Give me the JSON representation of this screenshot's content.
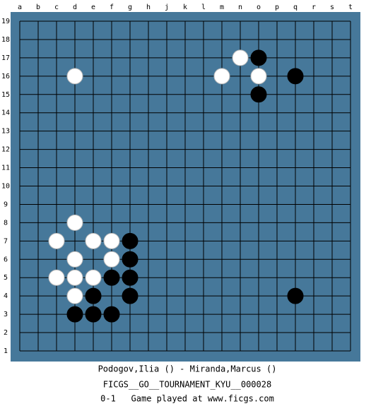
{
  "board": {
    "columns": [
      "a",
      "b",
      "c",
      "d",
      "e",
      "f",
      "g",
      "h",
      "j",
      "k",
      "l",
      "m",
      "n",
      "o",
      "p",
      "q",
      "r",
      "s",
      "t"
    ],
    "rows": [
      19,
      18,
      17,
      16,
      15,
      14,
      13,
      12,
      11,
      10,
      9,
      8,
      7,
      6,
      5,
      4,
      3,
      2,
      1
    ],
    "stones": [
      {
        "color": "white",
        "col": "n",
        "row": 17
      },
      {
        "color": "black",
        "col": "o",
        "row": 17
      },
      {
        "color": "white",
        "col": "d",
        "row": 16
      },
      {
        "color": "white",
        "col": "m",
        "row": 16
      },
      {
        "color": "white",
        "col": "o",
        "row": 16
      },
      {
        "color": "black",
        "col": "q",
        "row": 16
      },
      {
        "color": "black",
        "col": "o",
        "row": 15
      },
      {
        "color": "white",
        "col": "d",
        "row": 8
      },
      {
        "color": "white",
        "col": "c",
        "row": 7
      },
      {
        "color": "white",
        "col": "e",
        "row": 7
      },
      {
        "color": "white",
        "col": "f",
        "row": 7
      },
      {
        "color": "black",
        "col": "g",
        "row": 7
      },
      {
        "color": "white",
        "col": "d",
        "row": 6
      },
      {
        "color": "white",
        "col": "f",
        "row": 6
      },
      {
        "color": "black",
        "col": "g",
        "row": 6
      },
      {
        "color": "white",
        "col": "c",
        "row": 5
      },
      {
        "color": "white",
        "col": "d",
        "row": 5
      },
      {
        "color": "white",
        "col": "e",
        "row": 5
      },
      {
        "color": "black",
        "col": "f",
        "row": 5
      },
      {
        "color": "black",
        "col": "g",
        "row": 5
      },
      {
        "color": "white",
        "col": "d",
        "row": 4
      },
      {
        "color": "black",
        "col": "e",
        "row": 4
      },
      {
        "color": "black",
        "col": "g",
        "row": 4
      },
      {
        "color": "black",
        "col": "q",
        "row": 4
      },
      {
        "color": "black",
        "col": "d",
        "row": 3
      },
      {
        "color": "black",
        "col": "e",
        "row": 3
      },
      {
        "color": "black",
        "col": "f",
        "row": 3
      }
    ]
  },
  "footer": {
    "players": "Podogov,Ilia () - Miranda,Marcus ()",
    "event": "FICGS__GO__TOURNAMENT_KYU__000028",
    "result_line": "0-1   Game played at www.ficgs.com"
  }
}
